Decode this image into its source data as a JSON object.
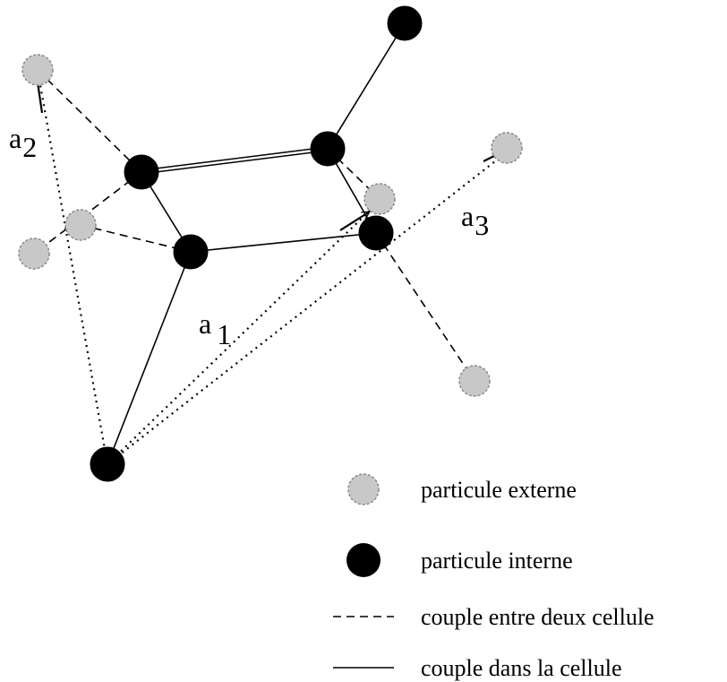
{
  "colors": {
    "internal_particle": "#000000",
    "external_particle": "#c8c8c8",
    "external_outline": "#8a8a8a",
    "line": "#000000",
    "background": "#ffffff"
  },
  "vectors": {
    "a1": {
      "base": "a",
      "sub": "1"
    },
    "a2": {
      "base": "a",
      "sub": "2"
    },
    "a3": {
      "base": "a",
      "sub": "3"
    }
  },
  "legend": {
    "external": "particule externe",
    "internal": "particule interne",
    "between_cells": "couple entre deux cellule",
    "within_cell": "couple dans la cellule"
  }
}
